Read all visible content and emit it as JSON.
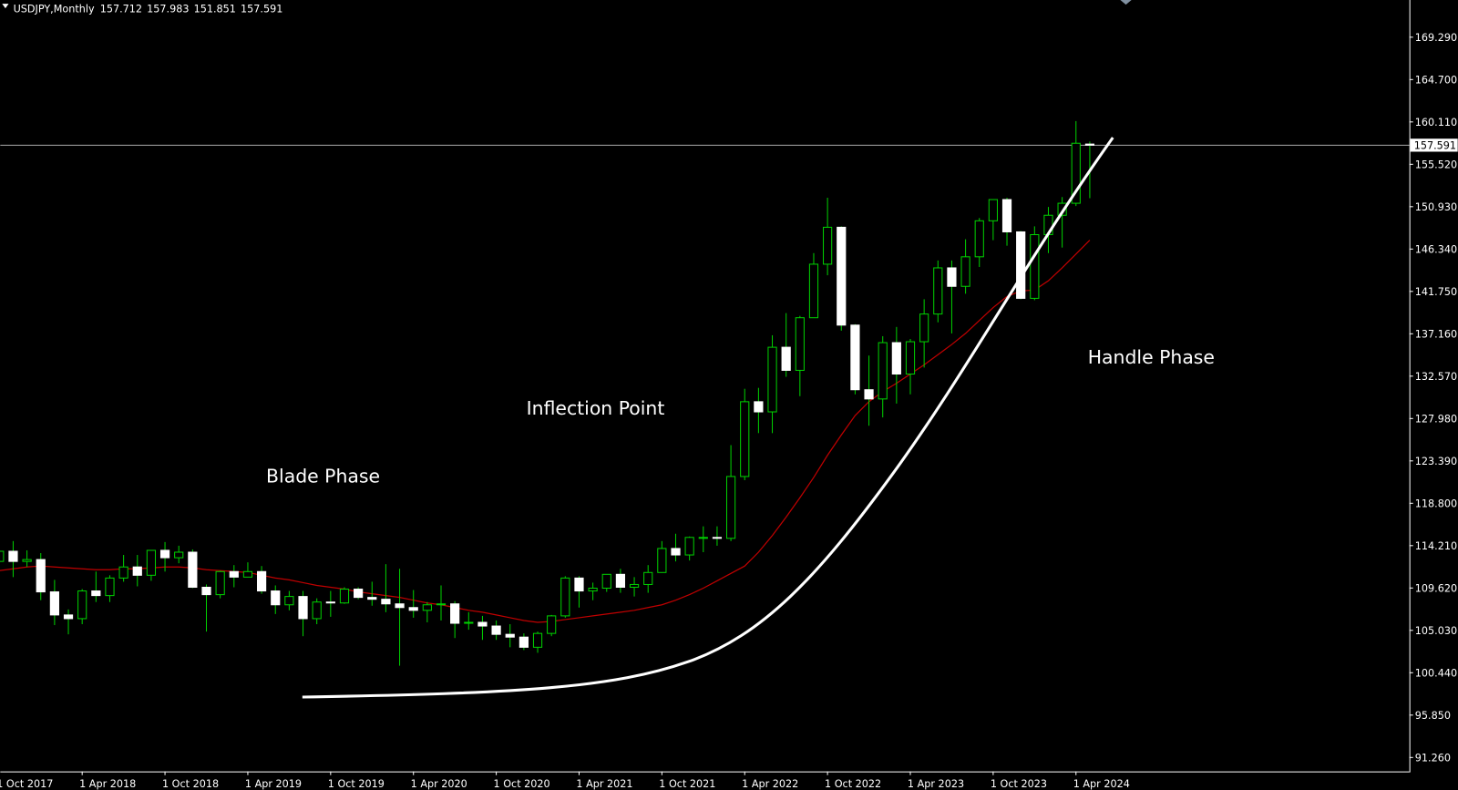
{
  "chart_data": {
    "type": "candlestick",
    "symbol": "USDJPY,Monthly",
    "categories": [
      "1 Oct 2017",
      null,
      null,
      null,
      null,
      null,
      "1 Apr 2018",
      null,
      null,
      null,
      null,
      null,
      "1 Oct 2018",
      null,
      null,
      null,
      null,
      null,
      "1 Apr 2019",
      null,
      null,
      null,
      null,
      null,
      "1 Oct 2019",
      null,
      null,
      null,
      null,
      null,
      "1 Apr 2020",
      null,
      null,
      null,
      null,
      null,
      "1 Oct 2020",
      null,
      null,
      null,
      null,
      null,
      "1 Apr 2021",
      null,
      null,
      null,
      null,
      null,
      "1 Oct 2021",
      null,
      null,
      null,
      null,
      null,
      "1 Apr 2022",
      null,
      null,
      null,
      null,
      null,
      "1 Oct 2022",
      null,
      null,
      null,
      null,
      null,
      "1 Apr 2023",
      null,
      null,
      null,
      null,
      null,
      "1 Oct 2023",
      null,
      null,
      null,
      null,
      null,
      "1 Apr 2024",
      null
    ],
    "series": {
      "open": [
        112.5,
        113.6,
        112.5,
        112.7,
        109.2,
        106.7,
        106.3,
        109.3,
        108.8,
        110.7,
        111.9,
        111.0,
        113.7,
        112.9,
        113.5,
        109.7,
        108.9,
        111.4,
        110.8,
        111.4,
        109.3,
        107.8,
        108.7,
        106.3,
        108.1,
        108.0,
        109.5,
        108.6,
        108.4,
        107.9,
        107.5,
        107.2,
        107.8,
        107.9,
        105.8,
        105.9,
        105.5,
        104.6,
        104.3,
        103.2,
        104.7,
        106.6,
        110.7,
        109.3,
        109.6,
        111.1,
        109.7,
        110.0,
        111.3,
        113.9,
        113.2,
        115.1,
        115.1,
        115.0,
        121.7,
        129.8,
        128.7,
        135.7,
        133.2,
        138.9,
        144.7,
        148.7,
        138.1,
        131.1,
        130.1,
        136.2,
        132.8,
        136.3,
        139.3,
        144.3,
        142.3,
        145.5,
        149.4,
        151.7,
        148.2,
        141.0,
        147.9,
        150.0,
        151.3,
        157.712
      ],
      "high": [
        114.4,
        114.7,
        113.7,
        113.4,
        110.5,
        107.3,
        109.5,
        111.4,
        111.0,
        113.2,
        113.2,
        113.7,
        114.6,
        114.2,
        113.8,
        110.0,
        111.5,
        112.1,
        112.4,
        112.0,
        109.9,
        109.3,
        109.3,
        108.5,
        109.3,
        109.7,
        109.7,
        110.3,
        112.2,
        111.7,
        109.4,
        108.1,
        109.9,
        108.2,
        107.0,
        106.6,
        106.1,
        105.7,
        104.7,
        104.9,
        106.7,
        110.9,
        110.9,
        110.2,
        111.1,
        111.7,
        110.8,
        112.1,
        114.7,
        115.5,
        115.2,
        116.3,
        116.3,
        125.1,
        131.2,
        131.3,
        137.0,
        139.4,
        139.1,
        145.9,
        151.9,
        148.8,
        138.2,
        134.8,
        136.9,
        137.9,
        136.6,
        140.9,
        145.1,
        145.1,
        147.4,
        149.7,
        151.7,
        151.9,
        148.3,
        148.8,
        150.9,
        151.97,
        160.2,
        157.983
      ],
      "low": [
        111.7,
        110.8,
        111.9,
        108.3,
        105.6,
        104.6,
        105.7,
        108.1,
        108.1,
        110.3,
        109.8,
        110.4,
        111.4,
        112.3,
        109.6,
        104.9,
        108.5,
        109.7,
        110.8,
        109.0,
        106.8,
        107.2,
        104.4,
        105.7,
        106.5,
        107.9,
        108.4,
        107.7,
        107.0,
        101.2,
        106.4,
        105.9,
        106.1,
        104.2,
        105.1,
        104.0,
        104.0,
        103.2,
        102.9,
        102.6,
        104.4,
        106.4,
        107.5,
        108.3,
        109.2,
        109.1,
        108.7,
        109.1,
        111.3,
        112.5,
        112.6,
        113.5,
        114.2,
        114.7,
        121.3,
        126.4,
        126.4,
        132.5,
        130.4,
        138.9,
        143.5,
        137.5,
        130.6,
        127.2,
        128.1,
        129.6,
        130.6,
        133.5,
        138.4,
        137.2,
        141.5,
        144.4,
        147.3,
        146.7,
        140.9,
        140.8,
        145.9,
        146.5,
        151.0,
        151.851
      ],
      "close": [
        113.6,
        112.5,
        112.7,
        109.2,
        106.7,
        106.3,
        109.3,
        108.8,
        110.7,
        111.9,
        111.0,
        113.7,
        112.9,
        113.5,
        109.7,
        108.9,
        111.4,
        110.8,
        111.4,
        109.3,
        107.8,
        108.7,
        106.3,
        108.1,
        108.0,
        109.5,
        108.6,
        108.4,
        107.9,
        107.5,
        107.2,
        107.8,
        107.9,
        105.8,
        105.9,
        105.5,
        104.6,
        104.3,
        103.2,
        104.7,
        106.6,
        110.7,
        109.3,
        109.6,
        111.1,
        109.7,
        110.0,
        111.3,
        113.9,
        113.2,
        115.1,
        115.1,
        115.0,
        121.7,
        129.8,
        128.7,
        135.7,
        133.2,
        138.9,
        144.7,
        148.7,
        138.1,
        131.1,
        130.1,
        136.2,
        132.8,
        136.3,
        139.3,
        144.3,
        142.3,
        145.5,
        149.4,
        151.7,
        148.2,
        141.0,
        147.9,
        150.0,
        151.3,
        157.8,
        157.591
      ]
    },
    "moving_average": {
      "color": "#c00000",
      "values": [
        111.5,
        111.7,
        111.9,
        112.0,
        111.9,
        111.8,
        111.7,
        111.6,
        111.6,
        111.7,
        111.7,
        111.8,
        111.9,
        111.9,
        111.8,
        111.6,
        111.5,
        111.4,
        111.3,
        111.0,
        110.7,
        110.5,
        110.2,
        109.9,
        109.7,
        109.5,
        109.2,
        109.0,
        108.8,
        108.6,
        108.3,
        108.0,
        107.8,
        107.5,
        107.2,
        107.0,
        106.7,
        106.4,
        106.1,
        105.9,
        106.0,
        106.2,
        106.4,
        106.6,
        106.8,
        107.0,
        107.2,
        107.5,
        107.8,
        108.3,
        108.9,
        109.6,
        110.4,
        111.2,
        112.0,
        113.5,
        115.3,
        117.3,
        119.4,
        121.6,
        124.0,
        126.2,
        128.3,
        129.8,
        130.9,
        131.8,
        132.8,
        133.8,
        134.9,
        136.0,
        137.2,
        138.6,
        140.0,
        141.2,
        141.8,
        141.9,
        142.9,
        144.3,
        145.8,
        147.3
      ]
    },
    "colors": {
      "wick": "#00d000",
      "bull_body": "#000000",
      "bull_border": "#00d000",
      "bear_body": "#ffffff",
      "bear_border": "#ffffff",
      "price_line": "#aaaaaa"
    },
    "ylim": [
      89.75,
      173.32
    ],
    "yticks": [
      {
        "value": 169.29,
        "label": "169.290"
      },
      {
        "value": 164.7,
        "label": "164.700"
      },
      {
        "value": 160.11,
        "label": "160.110"
      },
      {
        "value": 155.52,
        "label": "155.520"
      },
      {
        "value": 150.93,
        "label": "150.930"
      },
      {
        "value": 146.34,
        "label": "146.340"
      },
      {
        "value": 141.75,
        "label": "141.750"
      },
      {
        "value": 137.16,
        "label": "137.160"
      },
      {
        "value": 132.57,
        "label": "132.570"
      },
      {
        "value": 127.98,
        "label": "127.980"
      },
      {
        "value": 123.39,
        "label": "123.390"
      },
      {
        "value": 118.8,
        "label": "118.800"
      },
      {
        "value": 114.21,
        "label": "114.210"
      },
      {
        "value": 109.62,
        "label": "109.620"
      },
      {
        "value": 105.03,
        "label": "105.030"
      },
      {
        "value": 100.44,
        "label": "100.440"
      },
      {
        "value": 95.85,
        "label": "95.850"
      },
      {
        "value": 91.26,
        "label": "91.260"
      }
    ],
    "annotations": [
      "Blade Phase",
      "Inflection Point",
      "Handle Phase"
    ]
  }
}
